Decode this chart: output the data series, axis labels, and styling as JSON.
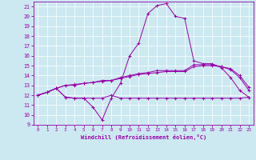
{
  "xlabel": "Windchill (Refroidissement éolien,°C)",
  "bg_color": "#cce8f0",
  "line_color": "#9900aa",
  "xlim": [
    -0.5,
    23.5
  ],
  "ylim": [
    9,
    21.5
  ],
  "xticks": [
    0,
    1,
    2,
    3,
    4,
    5,
    6,
    7,
    8,
    9,
    10,
    11,
    12,
    13,
    14,
    15,
    16,
    17,
    18,
    19,
    20,
    21,
    22,
    23
  ],
  "yticks": [
    9,
    10,
    11,
    12,
    13,
    14,
    15,
    16,
    17,
    18,
    19,
    20,
    21
  ],
  "line1_x": [
    0,
    1,
    2,
    3,
    4,
    5,
    6,
    7,
    8,
    9,
    10,
    11,
    12,
    13,
    14,
    15,
    16,
    17,
    18,
    19,
    20,
    21,
    22,
    23
  ],
  "line1_y": [
    12.0,
    12.3,
    12.7,
    11.8,
    11.7,
    11.7,
    11.7,
    11.7,
    12.0,
    11.7,
    11.7,
    11.7,
    11.7,
    11.7,
    11.7,
    11.7,
    11.7,
    11.7,
    11.7,
    11.7,
    11.7,
    11.7,
    11.7,
    11.8
  ],
  "line2_x": [
    0,
    1,
    2,
    3,
    4,
    5,
    6,
    7,
    8,
    9,
    10,
    11,
    12,
    13,
    14,
    15,
    16,
    17,
    18,
    19,
    20,
    21,
    22,
    23
  ],
  "line2_y": [
    12.0,
    12.3,
    12.7,
    13.0,
    13.0,
    13.2,
    13.3,
    13.4,
    13.5,
    13.7,
    13.9,
    14.1,
    14.2,
    14.3,
    14.4,
    14.4,
    14.4,
    14.9,
    15.0,
    15.0,
    14.9,
    14.6,
    13.8,
    12.5
  ],
  "line3_x": [
    0,
    1,
    2,
    3,
    4,
    5,
    6,
    7,
    8,
    9,
    10,
    11,
    12,
    13,
    14,
    15,
    16,
    17,
    18,
    19,
    20,
    21,
    22,
    23
  ],
  "line3_y": [
    12.0,
    12.3,
    12.7,
    13.0,
    13.1,
    13.2,
    13.3,
    13.5,
    13.5,
    13.8,
    14.0,
    14.2,
    14.3,
    14.5,
    14.5,
    14.5,
    14.5,
    15.1,
    15.1,
    15.1,
    14.9,
    14.7,
    14.0,
    12.8
  ],
  "line4_x": [
    0,
    1,
    2,
    3,
    4,
    5,
    6,
    7,
    8,
    9,
    10,
    11,
    12,
    13,
    14,
    15,
    16,
    17,
    18,
    19,
    20,
    21,
    22,
    23
  ],
  "line4_y": [
    12.0,
    12.3,
    12.7,
    11.8,
    11.7,
    11.7,
    10.8,
    9.5,
    11.7,
    13.2,
    16.0,
    17.3,
    20.3,
    21.1,
    21.3,
    20.0,
    19.8,
    15.5,
    15.2,
    15.2,
    14.8,
    13.8,
    12.5,
    11.8
  ]
}
